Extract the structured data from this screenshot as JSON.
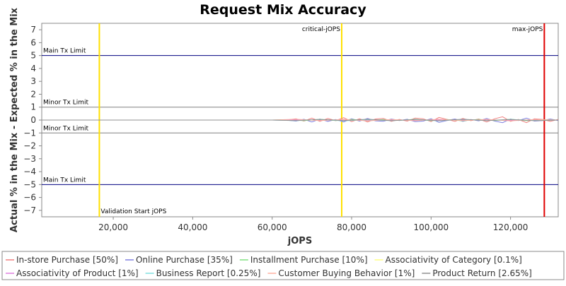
{
  "chart_data": {
    "type": "line",
    "title": "Request Mix Accuracy",
    "xlabel": "jOPS",
    "ylabel": "Actual % in the Mix - Expected % in the Mix",
    "xlim": [
      2000,
      132000
    ],
    "ylim": [
      -7.5,
      7.5
    ],
    "x_ticks": [
      20000,
      40000,
      60000,
      80000,
      100000,
      120000
    ],
    "x_tick_labels": [
      "20,000",
      "40,000",
      "60,000",
      "80,000",
      "100,000",
      "120,000"
    ],
    "y_ticks": [
      -7,
      -6,
      -5,
      -4,
      -3,
      -2,
      -1,
      0,
      1,
      2,
      3,
      4,
      5,
      6,
      7
    ],
    "y_tick_labels": [
      "−7",
      "−6",
      "−5",
      "−4",
      "−3",
      "−2",
      "−1",
      "0",
      "1",
      "2",
      "3",
      "4",
      "5",
      "6",
      "7"
    ],
    "grid": false,
    "legend_position": "bottom",
    "series": [
      {
        "name": "In-store Purchase [50%]",
        "color": "#f08080",
        "x": [
          2000,
          60000,
          64000,
          66000,
          68000,
          70000,
          72000,
          74000,
          76000,
          78000,
          80000,
          82000,
          84000,
          86000,
          88000,
          90000,
          92000,
          94000,
          96000,
          98000,
          100000,
          102000,
          104000,
          106000,
          108000,
          110000,
          112000,
          114000,
          116000,
          118000,
          120000,
          122000,
          124000,
          126000,
          128000,
          130000,
          132000
        ],
        "values": [
          0,
          0,
          0.02,
          0.1,
          -0.08,
          0.15,
          -0.1,
          0.12,
          -0.05,
          0.18,
          -0.12,
          0.1,
          -0.15,
          0.08,
          0.12,
          -0.1,
          0.05,
          -0.08,
          0.15,
          0.1,
          -0.12,
          0.2,
          0.05,
          -0.1,
          0.12,
          -0.05,
          0.08,
          -0.15,
          0.1,
          0.25,
          -0.1,
          0.05,
          -0.2,
          0.1,
          0.05,
          -0.1,
          0.05
        ]
      },
      {
        "name": "Online Purchase [35%]",
        "color": "#8080e0",
        "x": [
          2000,
          60000,
          64000,
          66000,
          68000,
          70000,
          72000,
          74000,
          76000,
          78000,
          80000,
          82000,
          84000,
          86000,
          88000,
          90000,
          92000,
          94000,
          96000,
          98000,
          100000,
          102000,
          104000,
          106000,
          108000,
          110000,
          112000,
          114000,
          116000,
          118000,
          120000,
          122000,
          124000,
          126000,
          128000,
          130000,
          132000
        ],
        "values": [
          0,
          0,
          -0.02,
          -0.08,
          0.06,
          -0.15,
          0.08,
          -0.1,
          0.04,
          -0.15,
          0.1,
          -0.08,
          0.12,
          -0.06,
          -0.1,
          0.08,
          -0.04,
          0.06,
          -0.12,
          -0.08,
          0.1,
          -0.18,
          -0.04,
          0.08,
          -0.1,
          0.04,
          -0.06,
          0.12,
          -0.08,
          -0.2,
          0.08,
          -0.04,
          0.15,
          -0.08,
          -0.04,
          0.08,
          -0.04
        ]
      },
      {
        "name": "Installment Purchase [10%]",
        "color": "#80e080",
        "x": [
          2000,
          60000,
          64000,
          68000,
          72000,
          76000,
          80000,
          84000,
          88000,
          92000,
          96000,
          100000,
          104000,
          108000,
          112000,
          116000,
          120000,
          124000,
          128000,
          132000
        ],
        "values": [
          0,
          0,
          0.03,
          -0.05,
          0.06,
          -0.04,
          0.05,
          -0.06,
          0.04,
          -0.03,
          0.06,
          -0.05,
          0.04,
          -0.06,
          0.05,
          -0.04,
          0.06,
          -0.05,
          0.03,
          0
        ]
      },
      {
        "name": "Associativity of Category [0.1%]",
        "color": "#ffff80",
        "x": [
          2000,
          132000
        ],
        "values": [
          0,
          0
        ]
      },
      {
        "name": "Associativity of Product [1%]",
        "color": "#e080e0",
        "x": [
          2000,
          132000
        ],
        "values": [
          0,
          0
        ]
      },
      {
        "name": "Business Report [0.25%]",
        "color": "#80e0e0",
        "x": [
          2000,
          60000,
          66000,
          72000,
          78000,
          84000,
          90000,
          96000,
          102000,
          108000,
          114000,
          120000,
          126000,
          132000
        ],
        "values": [
          0,
          0,
          -0.05,
          0.04,
          -0.06,
          0.03,
          -0.05,
          0.04,
          -0.06,
          0.05,
          -0.04,
          0.05,
          -0.03,
          0
        ]
      },
      {
        "name": "Customer Buying Behavior [1%]",
        "color": "#ffb0a0",
        "x": [
          2000,
          60000,
          66000,
          72000,
          78000,
          84000,
          90000,
          96000,
          102000,
          108000,
          114000,
          120000,
          126000,
          132000
        ],
        "values": [
          0,
          0,
          0.06,
          -0.04,
          0.05,
          -0.06,
          0.04,
          -0.05,
          0.06,
          -0.04,
          0.05,
          -0.06,
          0.04,
          0
        ]
      },
      {
        "name": "Product Return [2.65%]",
        "color": "#909090",
        "x": [
          2000,
          60000,
          66000,
          72000,
          78000,
          84000,
          90000,
          96000,
          102000,
          108000,
          114000,
          120000,
          126000,
          132000
        ],
        "values": [
          0,
          0,
          -0.04,
          0.05,
          -0.04,
          0.06,
          -0.05,
          0.04,
          -0.05,
          0.06,
          -0.04,
          0.04,
          -0.05,
          0
        ]
      }
    ],
    "vertical_markers": [
      {
        "x": 16500,
        "label": "Validation Start jOPS",
        "color": "#ffe000",
        "label_pos": "bottom"
      },
      {
        "x": 77500,
        "label": "critical-jOPS",
        "color": "#ffe000",
        "label_pos": "top"
      },
      {
        "x": 128500,
        "label": "max-jOPS",
        "color": "#e00000",
        "label_pos": "top"
      }
    ],
    "horizontal_markers": [
      {
        "y": 5,
        "label": "Main Tx Limit",
        "color": "#000080",
        "label_pos": "above"
      },
      {
        "y": 1,
        "label": "Minor Tx Limit",
        "color": "#808080",
        "label_pos": "above"
      },
      {
        "y": -1,
        "label": "Minor Tx Limit",
        "color": "#808080",
        "label_pos": "above"
      },
      {
        "y": -5,
        "label": "Main Tx Limit",
        "color": "#000080",
        "label_pos": "above"
      }
    ]
  }
}
